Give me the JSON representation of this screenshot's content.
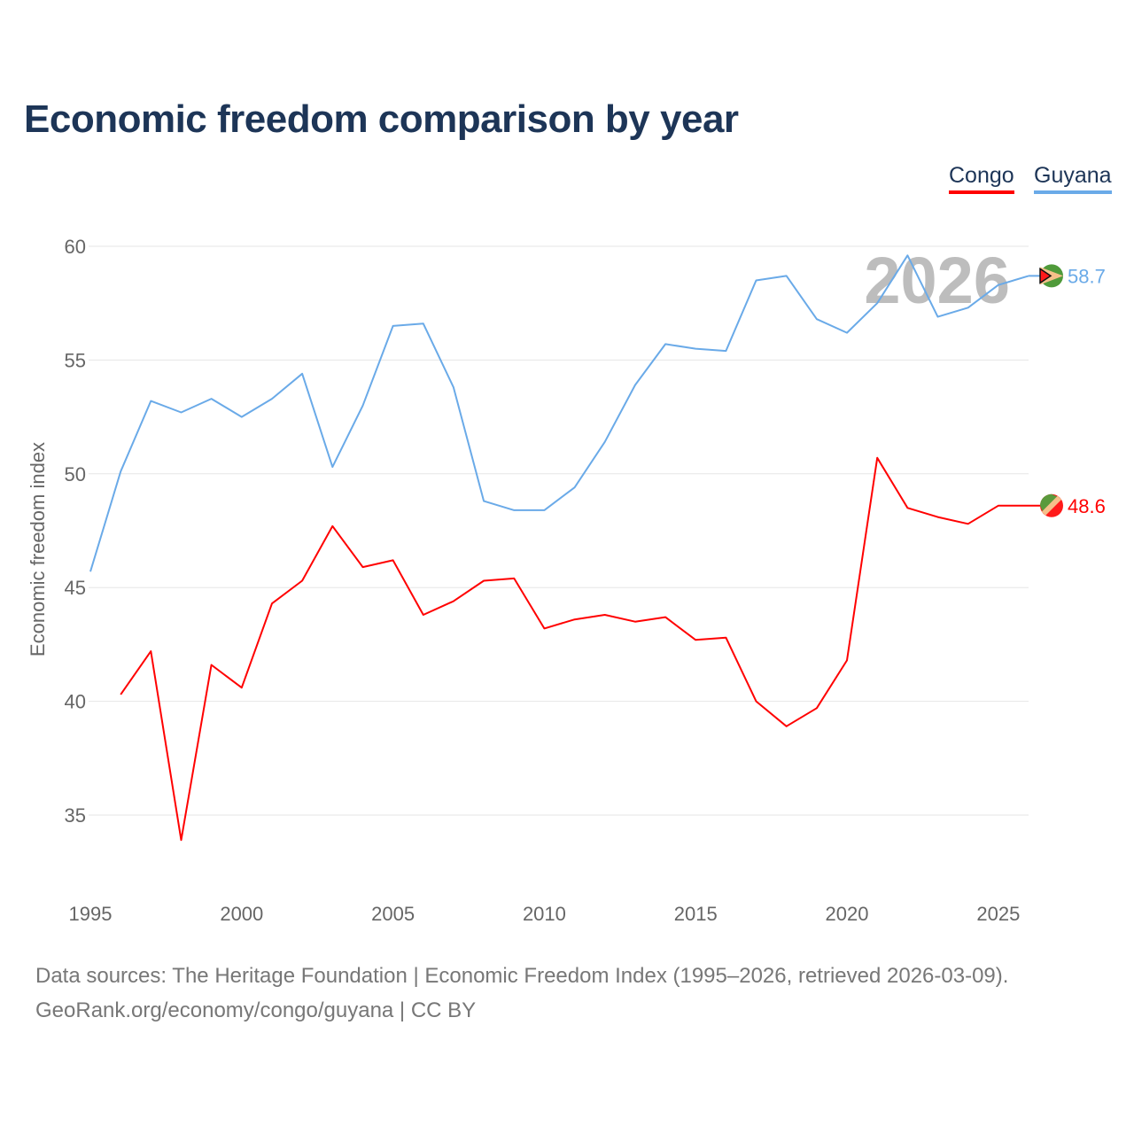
{
  "chart_data": {
    "type": "line",
    "title": "Economic freedom comparison by year",
    "xlabel": "",
    "ylabel": "Economic freedom index",
    "xlim": [
      1995,
      2026
    ],
    "ylim": [
      32.5,
      61
    ],
    "yticks": [
      35,
      40,
      45,
      50,
      55,
      60
    ],
    "xticks": [
      1995,
      2000,
      2005,
      2010,
      2015,
      2020,
      2025
    ],
    "grid": true,
    "legend_position": "top-right",
    "year_watermark": "2026",
    "series": [
      {
        "name": "Congo",
        "color": "#ff0000",
        "end_label": "48.6",
        "x": [
          1996,
          1997,
          1998,
          1999,
          2000,
          2001,
          2002,
          2003,
          2004,
          2005,
          2006,
          2007,
          2008,
          2009,
          2010,
          2011,
          2012,
          2013,
          2014,
          2015,
          2016,
          2017,
          2018,
          2019,
          2020,
          2021,
          2022,
          2023,
          2024,
          2025,
          2026
        ],
        "values": [
          40.3,
          42.2,
          33.9,
          41.6,
          40.6,
          44.3,
          45.3,
          47.7,
          45.9,
          46.2,
          43.8,
          44.4,
          45.3,
          45.4,
          43.2,
          43.6,
          43.8,
          43.5,
          43.7,
          42.7,
          42.8,
          40.0,
          38.9,
          39.7,
          41.8,
          50.7,
          48.5,
          48.1,
          47.8,
          48.6,
          48.6
        ]
      },
      {
        "name": "Guyana",
        "color": "#6aaae8",
        "end_label": "58.7",
        "x": [
          1995,
          1996,
          1997,
          1998,
          1999,
          2000,
          2001,
          2002,
          2003,
          2004,
          2005,
          2006,
          2007,
          2008,
          2009,
          2010,
          2011,
          2012,
          2013,
          2014,
          2015,
          2016,
          2017,
          2018,
          2019,
          2020,
          2021,
          2022,
          2023,
          2024,
          2025,
          2026
        ],
        "values": [
          45.7,
          50.1,
          53.2,
          52.7,
          53.3,
          52.5,
          53.3,
          54.4,
          50.3,
          53.0,
          56.5,
          56.6,
          53.8,
          48.8,
          48.4,
          48.4,
          49.4,
          51.4,
          53.9,
          55.7,
          55.5,
          55.4,
          58.5,
          58.7,
          56.8,
          56.2,
          57.5,
          59.6,
          56.9,
          57.3,
          58.3,
          58.7
        ]
      }
    ]
  },
  "footer": {
    "line1": "Data sources: The Heritage Foundation | Economic Freedom Index (1995–2026, retrieved 2026-03-09).",
    "line2": "GeoRank.org/economy/congo/guyana | CC BY"
  }
}
